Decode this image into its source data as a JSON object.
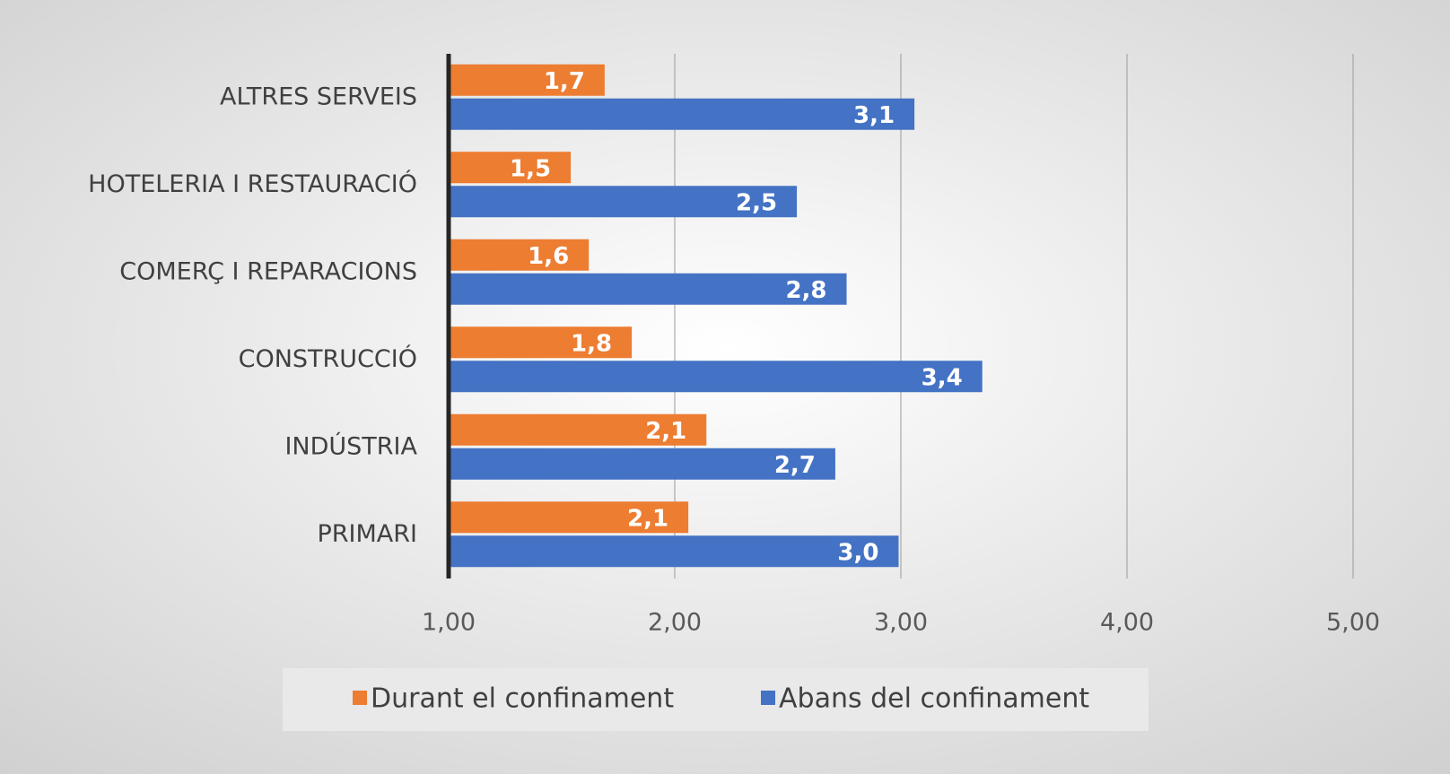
{
  "chart_data": {
    "type": "bar",
    "orientation": "horizontal",
    "categories": [
      "ALTRES SERVEIS",
      "HOTELERIA  I RESTAURACIÓ",
      "COMERÇ  I REPARACIONS",
      "CONSTRUCCIÓ",
      "INDÚSTRIA",
      "PRIMARI"
    ],
    "series": [
      {
        "name": "Durant el confinament",
        "color": "#ed7d31",
        "values": [
          1.69,
          1.54,
          1.62,
          1.81,
          2.14,
          2.06
        ],
        "value_labels": [
          "1,7",
          "1,5",
          "1,6",
          "1,8",
          "2,1",
          "2,1"
        ]
      },
      {
        "name": "Abans del confinament",
        "color": "#4472c4",
        "values": [
          3.06,
          2.54,
          2.76,
          3.36,
          2.71,
          2.99
        ],
        "value_labels": [
          "3,1",
          "2,5",
          "2,8",
          "3,4",
          "2,7",
          "3,0"
        ]
      }
    ],
    "xlim": [
      1,
      5
    ],
    "xticks": [
      {
        "value": 1,
        "label": "1,00"
      },
      {
        "value": 2,
        "label": "2,00"
      },
      {
        "value": 3,
        "label": "3,00"
      },
      {
        "value": 4,
        "label": "4,00"
      },
      {
        "value": 5,
        "label": "5,00"
      }
    ],
    "grid": true,
    "legend": "bottom"
  }
}
